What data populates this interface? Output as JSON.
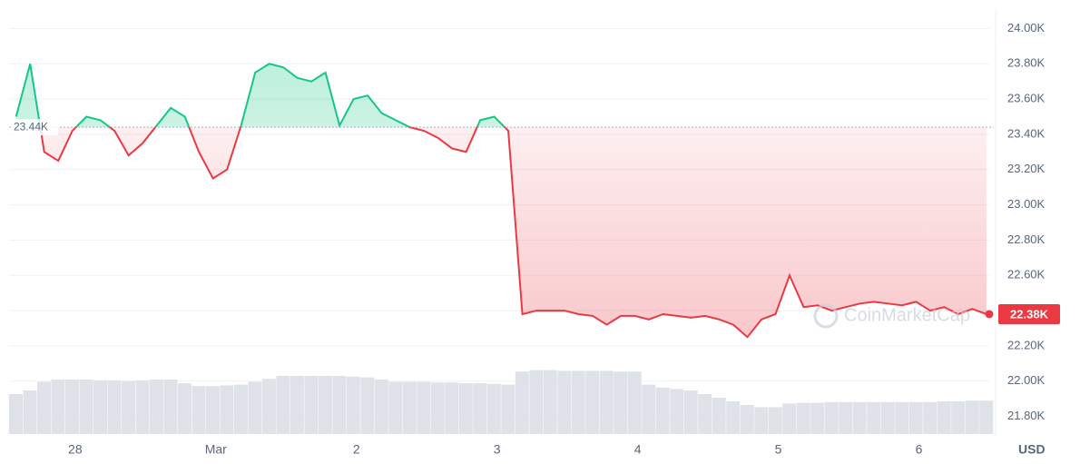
{
  "chart_data": {
    "type": "line",
    "x": [
      -0.42,
      -0.32,
      -0.22,
      -0.12,
      -0.02,
      0.08,
      0.18,
      0.28,
      0.38,
      0.48,
      0.58,
      0.68,
      0.78,
      0.88,
      0.98,
      1.08,
      1.18,
      1.28,
      1.38,
      1.48,
      1.58,
      1.68,
      1.78,
      1.88,
      1.98,
      2.08,
      2.18,
      2.28,
      2.38,
      2.48,
      2.58,
      2.68,
      2.78,
      2.88,
      2.98,
      3.08,
      3.18,
      3.28,
      3.38,
      3.48,
      3.58,
      3.68,
      3.78,
      3.88,
      3.98,
      4.08,
      4.18,
      4.28,
      4.38,
      4.48,
      4.58,
      4.68,
      4.78,
      4.88,
      4.98,
      5.08,
      5.18,
      5.28,
      5.38,
      5.48,
      5.58,
      5.68,
      5.78,
      5.88,
      5.98,
      6.08,
      6.18,
      6.28,
      6.38,
      6.48
    ],
    "values": [
      23.5,
      23.8,
      23.3,
      23.25,
      23.42,
      23.5,
      23.48,
      23.42,
      23.28,
      23.35,
      23.45,
      23.55,
      23.5,
      23.3,
      23.15,
      23.2,
      23.45,
      23.75,
      23.8,
      23.78,
      23.72,
      23.7,
      23.75,
      23.45,
      23.6,
      23.62,
      23.52,
      23.48,
      23.44,
      23.42,
      23.38,
      23.32,
      23.3,
      23.48,
      23.5,
      23.42,
      22.38,
      22.4,
      22.4,
      22.4,
      22.38,
      22.37,
      22.32,
      22.37,
      22.37,
      22.35,
      22.38,
      22.37,
      22.36,
      22.37,
      22.35,
      22.32,
      22.25,
      22.35,
      22.38,
      22.6,
      22.42,
      22.43,
      22.4,
      22.42,
      22.44,
      22.45,
      22.44,
      22.43,
      22.45,
      22.4,
      22.42,
      22.38,
      22.41,
      22.38
    ],
    "volume": {
      "values": [
        55,
        60,
        72,
        75,
        75,
        75,
        74,
        74,
        73,
        74,
        75,
        75,
        70,
        66,
        66,
        67,
        68,
        72,
        76,
        80,
        80,
        80,
        80,
        80,
        79,
        78,
        75,
        72,
        72,
        72,
        71,
        71,
        70,
        70,
        69,
        68,
        86,
        88,
        88,
        87,
        87,
        87,
        87,
        86,
        86,
        68,
        64,
        62,
        60,
        55,
        50,
        45,
        40,
        37,
        37,
        42,
        43,
        43,
        44,
        44,
        44,
        44,
        44,
        44,
        44,
        44,
        45,
        45,
        46,
        46
      ],
      "ylim": [
        0,
        100
      ],
      "color": "#dfe2e8"
    },
    "baseline": {
      "value": 23.44,
      "label": "23.44K"
    },
    "current": {
      "value": 22.38,
      "label": "22.38K"
    },
    "up_color": "#16c784",
    "down_color": "#ea3943",
    "xlim": [
      -0.47,
      6.5
    ],
    "xticks": [
      {
        "value": 0,
        "label": "28"
      },
      {
        "value": 1,
        "label": "Mar"
      },
      {
        "value": 2,
        "label": "2"
      },
      {
        "value": 3,
        "label": "3"
      },
      {
        "value": 4,
        "label": "4"
      },
      {
        "value": 5,
        "label": "5"
      },
      {
        "value": 6,
        "label": "6"
      }
    ],
    "ylim": [
      21.7,
      24.1
    ],
    "yticks": [
      {
        "value": 21.8,
        "label": "21.80K"
      },
      {
        "value": 22.0,
        "label": "22.00K"
      },
      {
        "value": 22.2,
        "label": "22.20K"
      },
      {
        "value": 22.4,
        "label": "22.40K"
      },
      {
        "value": 22.6,
        "label": "22.60K"
      },
      {
        "value": 22.8,
        "label": "22.80K"
      },
      {
        "value": 23.0,
        "label": "23.00K"
      },
      {
        "value": 23.2,
        "label": "23.20K"
      },
      {
        "value": 23.4,
        "label": "23.40K"
      },
      {
        "value": 23.6,
        "label": "23.60K"
      },
      {
        "value": 23.8,
        "label": "23.80K"
      },
      {
        "value": 24.0,
        "label": "24.00K"
      }
    ],
    "grid": true,
    "currency": "USD",
    "watermark": "CoinMarketCap"
  }
}
